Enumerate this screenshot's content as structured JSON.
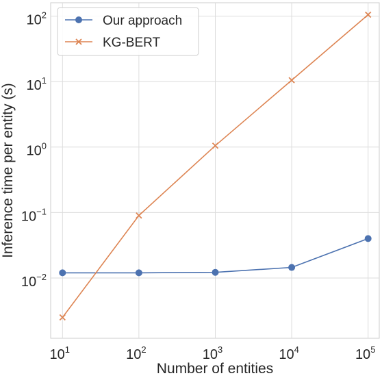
{
  "chart_data": {
    "type": "line",
    "title": "",
    "xlabel": "Number of entities",
    "ylabel": "Inference time per entity (s)",
    "xscale": "log",
    "yscale": "log",
    "x": [
      10,
      100,
      1000,
      10000,
      100000
    ],
    "xlim": [
      7,
      140000
    ],
    "ylim": [
      0.0012,
      160
    ],
    "x_ticks": [
      {
        "value": 10,
        "base": "10",
        "exp": "1"
      },
      {
        "value": 100,
        "base": "10",
        "exp": "2"
      },
      {
        "value": 1000,
        "base": "10",
        "exp": "3"
      },
      {
        "value": 10000,
        "base": "10",
        "exp": "4"
      },
      {
        "value": 100000,
        "base": "10",
        "exp": "5"
      }
    ],
    "y_ticks": [
      {
        "value": 0.01,
        "base": "10",
        "exp": "−2"
      },
      {
        "value": 0.1,
        "base": "10",
        "exp": "−1"
      },
      {
        "value": 1,
        "base": "10",
        "exp": "0"
      },
      {
        "value": 10,
        "base": "10",
        "exp": "1"
      },
      {
        "value": 100,
        "base": "10",
        "exp": "2"
      }
    ],
    "grid": true,
    "legend_position": "top-left",
    "series": [
      {
        "name": "Our approach",
        "marker": "circle",
        "color": "#4c72b0",
        "values": [
          0.012,
          0.012,
          0.0122,
          0.0145,
          0.04
        ]
      },
      {
        "name": "KG-BERT",
        "marker": "x",
        "color": "#dd8452",
        "values": [
          0.0025,
          0.09,
          1.05,
          10.5,
          105
        ]
      }
    ]
  }
}
